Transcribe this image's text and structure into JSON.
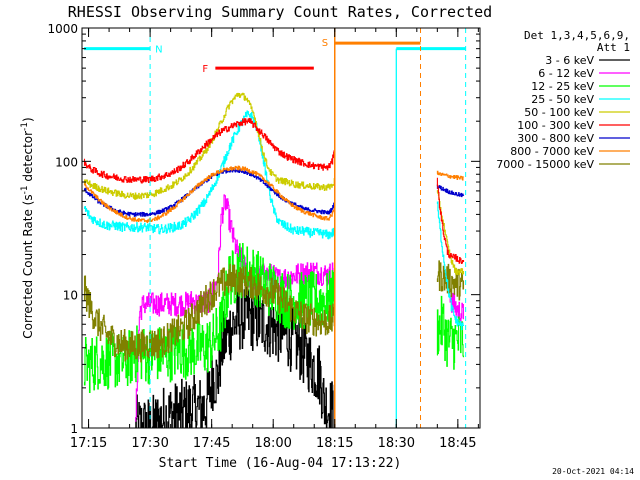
{
  "chart_data": {
    "type": "line",
    "title": "RHESSI Observing Summary Count Rates, Corrected",
    "xlabel": "Start Time (16-Aug-04 17:13:22)",
    "ylabel_main": "Corrected Count Rate (s",
    "ylabel_sup1": "-1",
    "ylabel_mid": " detector",
    "ylabel_sup2": "-1",
    "ylabel_end": ")",
    "timestamp": "20-Oct-2021 04:14",
    "x_unit": "minutes since 17:13:22 start",
    "xlim": [
      0,
      97
    ],
    "ylim": [
      1,
      1000
    ],
    "yscale": "log",
    "x_ticks": [
      {
        "label": "17:15",
        "value": 1.6
      },
      {
        "label": "17:30",
        "value": 16.6
      },
      {
        "label": "17:45",
        "value": 31.6
      },
      {
        "label": "18:00",
        "value": 46.6
      },
      {
        "label": "18:15",
        "value": 61.6
      },
      {
        "label": "18:30",
        "value": 76.6
      },
      {
        "label": "18:45",
        "value": 91.6
      }
    ],
    "y_ticks": [
      {
        "label": "1",
        "value": 1
      },
      {
        "label": "10",
        "value": 10
      },
      {
        "label": "100",
        "value": 100
      },
      {
        "label": "1000",
        "value": 1000
      }
    ],
    "legend": {
      "placement": "right",
      "header1": "Det 1,3,4,5,6,9,",
      "header2": "Att 1",
      "entries": [
        {
          "label": "3 - 6 keV",
          "color": "#000000"
        },
        {
          "label": "6 - 12 keV",
          "color": "#ff00ff"
        },
        {
          "label": "12 - 25 keV",
          "color": "#00ff00"
        },
        {
          "label": "25 - 50 keV",
          "color": "#00ffff"
        },
        {
          "label": "50 - 100 keV",
          "color": "#cccc00"
        },
        {
          "label": "100 - 300 keV",
          "color": "#ff0000"
        },
        {
          "label": "300 - 800 keV",
          "color": "#0000cc"
        },
        {
          "label": "800 - 7000 keV",
          "color": "#ff7f00"
        },
        {
          "label": "7000 - 15000 keV",
          "color": "#808000"
        }
      ]
    },
    "annotations": {
      "night": {
        "label": "N",
        "color": "#00ffff",
        "bars": [
          [
            0.5,
            16.6
          ],
          [
            76.6,
            93.5
          ]
        ],
        "bar_level": 700,
        "dashes": [
          16.6,
          93.5
        ],
        "solid": [
          76.6
        ]
      },
      "flare": {
        "label": "F",
        "color": "#ff0000",
        "bar": [
          32.5,
          56.5
        ],
        "bar_level": 500
      },
      "saa": {
        "label": "S",
        "color": "#ff7f00",
        "bar": [
          61.6,
          82.5
        ],
        "bar_level": 770,
        "solid": [
          61.6
        ],
        "dashes": [
          82.5
        ]
      }
    },
    "gaps": [
      [
        61.8,
        86.5
      ]
    ],
    "series": [
      {
        "name": "3 - 6 keV",
        "color": "#000000",
        "noise": 0.25,
        "ymin": 1,
        "x": [
          13,
          16,
          17,
          20,
          24,
          27,
          30,
          32,
          33,
          34,
          36,
          38,
          40,
          42,
          45,
          48,
          50,
          53,
          56,
          58,
          59,
          60,
          61.5
        ],
        "y": [
          1,
          1,
          1,
          1.2,
          1.3,
          1.4,
          1.4,
          2.5,
          2.3,
          4,
          5.5,
          6.5,
          7,
          6.5,
          6,
          5.3,
          5,
          4,
          3,
          2.5,
          1.5,
          1.4,
          1.3
        ]
      },
      {
        "name": "6 - 12 keV",
        "color": "#ff00ff",
        "noise": 0.09,
        "ymin": 1,
        "x": [
          13,
          14,
          15,
          20,
          25,
          27,
          28,
          31,
          33,
          34,
          35,
          36,
          37,
          38,
          39,
          40,
          41,
          42,
          44,
          46,
          48,
          50,
          52,
          54,
          56,
          58,
          60,
          61.5
        ],
        "y": [
          1,
          7.5,
          8.5,
          8.5,
          8.5,
          9,
          8.5,
          9,
          13,
          40,
          50,
          35,
          25,
          20,
          18,
          15,
          13,
          13,
          14,
          14,
          13,
          13.5,
          14,
          14.5,
          15,
          14.5,
          14,
          15
        ],
        "x2": [
          89,
          90,
          91,
          92,
          93
        ],
        "y2": [
          14,
          9,
          8,
          7.5,
          7
        ]
      },
      {
        "name": "12 - 25 keV",
        "color": "#00ff00",
        "noise": 0.22,
        "ymin": 1.8,
        "x": [
          0.5,
          2,
          4,
          6,
          8,
          10,
          12,
          14,
          16,
          18,
          20,
          22,
          24,
          26,
          28,
          30,
          32,
          34,
          36,
          37,
          38,
          40,
          42,
          44,
          46,
          48,
          50,
          52,
          54,
          56,
          58,
          60,
          61.5
        ],
        "y": [
          3,
          3,
          3.2,
          3.2,
          3.2,
          3.2,
          3.4,
          3.7,
          3.5,
          3.6,
          3.6,
          3.7,
          3.9,
          3.8,
          4,
          4,
          4.5,
          6,
          14,
          13,
          16,
          15,
          14,
          12,
          11,
          10,
          9,
          9,
          9,
          9,
          9,
          9,
          10
        ],
        "x2": [
          86.5,
          88,
          89,
          90,
          91,
          92,
          93
        ],
        "y2": [
          5.5,
          6,
          4.5,
          4.5,
          4.5,
          4.5,
          4.5
        ]
      },
      {
        "name": "25 - 50 keV",
        "color": "#00ffff",
        "noise": 0.035,
        "ymin": 1,
        "x": [
          0.5,
          2,
          4,
          6,
          8,
          10,
          12,
          14,
          16,
          18,
          20,
          22,
          24,
          26,
          28,
          30,
          32,
          34,
          36,
          38,
          40,
          41,
          42,
          43,
          44,
          45,
          46,
          47,
          48,
          50,
          52,
          54,
          56,
          58,
          60,
          61,
          61.5
        ],
        "y": [
          45,
          38,
          35,
          33,
          33,
          32,
          32,
          32,
          32,
          31,
          31,
          32,
          33,
          36,
          42,
          50,
          65,
          90,
          130,
          175,
          220,
          225,
          200,
          160,
          110,
          75,
          52,
          40,
          35,
          32,
          30,
          30,
          29,
          29,
          28,
          29,
          30
        ],
        "x2": [
          86.5,
          87,
          88,
          89,
          90,
          91,
          92,
          93
        ],
        "y2": [
          50,
          35,
          20,
          12,
          8,
          6.5,
          6,
          5.7
        ]
      },
      {
        "name": "50 - 100 keV",
        "color": "#cccc00",
        "noise": 0.025,
        "ymin": 1,
        "x": [
          0.5,
          2,
          4,
          6,
          8,
          10,
          12,
          14,
          16,
          18,
          20,
          22,
          24,
          26,
          28,
          30,
          32,
          34,
          36,
          38,
          40,
          42,
          43,
          44,
          45,
          46,
          47,
          48,
          50,
          52,
          54,
          56,
          58,
          60,
          61,
          61.5
        ],
        "y": [
          72,
          67,
          63,
          60,
          58,
          56,
          55,
          55,
          56,
          58,
          62,
          66,
          73,
          83,
          98,
          118,
          150,
          200,
          270,
          320,
          300,
          220,
          160,
          120,
          95,
          82,
          76,
          72,
          70,
          67,
          66,
          65,
          64,
          64,
          66,
          72
        ],
        "x2": [
          86.5,
          87,
          88,
          89,
          90,
          91,
          92,
          93
        ],
        "y2": [
          60,
          50,
          35,
          24,
          18,
          15,
          15,
          15
        ]
      },
      {
        "name": "100 - 300 keV",
        "color": "#ff0000",
        "noise": 0.025,
        "ymin": 1,
        "x": [
          0.5,
          2,
          4,
          6,
          8,
          10,
          12,
          14,
          16,
          18,
          20,
          22,
          24,
          26,
          28,
          30,
          32,
          34,
          36,
          38,
          40,
          41,
          42,
          44,
          46,
          48,
          50,
          52,
          54,
          56,
          58,
          60,
          61,
          61.5
        ],
        "y": [
          98,
          88,
          82,
          78,
          76,
          74,
          73,
          73,
          73,
          75,
          78,
          82,
          90,
          100,
          115,
          132,
          150,
          168,
          180,
          192,
          200,
          198,
          185,
          160,
          135,
          118,
          108,
          102,
          97,
          93,
          91,
          90,
          100,
          130
        ],
        "x2": [
          86.5,
          87,
          88,
          89,
          90,
          91,
          92,
          93
        ],
        "y2": [
          75,
          50,
          30,
          21,
          19,
          19,
          18,
          18
        ]
      },
      {
        "name": "300 - 800 keV",
        "color": "#0000cc",
        "noise": 0.015,
        "ymin": 1,
        "x": [
          0.5,
          2,
          4,
          6,
          8,
          10,
          12,
          14,
          16,
          18,
          20,
          22,
          24,
          26,
          28,
          30,
          32,
          34,
          36,
          38,
          40,
          42,
          44,
          46,
          48,
          50,
          52,
          54,
          56,
          58,
          60,
          61,
          61.5
        ],
        "y": [
          62,
          56,
          50,
          46,
          43,
          41,
          40,
          40,
          40,
          41,
          43,
          46,
          51,
          57,
          64,
          71,
          78,
          83,
          86,
          86,
          83,
          78,
          70,
          62,
          55,
          50,
          47,
          44,
          43,
          42,
          41,
          44,
          50
        ],
        "x2": [
          86.5,
          87,
          88,
          89,
          90,
          91,
          92,
          93
        ],
        "y2": [
          65,
          64,
          62,
          60,
          58,
          57,
          56,
          55
        ]
      },
      {
        "name": "800 - 7000 keV",
        "color": "#ff7f00",
        "noise": 0.015,
        "ymin": 1,
        "x": [
          0.5,
          2,
          4,
          6,
          8,
          10,
          12,
          14,
          16,
          18,
          20,
          22,
          24,
          26,
          28,
          30,
          32,
          34,
          36,
          38,
          40,
          42,
          44,
          46,
          48,
          50,
          52,
          54,
          56,
          58,
          60,
          61,
          61.5
        ],
        "y": [
          68,
          60,
          52,
          46,
          42,
          39,
          37,
          36,
          36,
          37,
          40,
          44,
          50,
          57,
          65,
          73,
          80,
          85,
          88,
          89,
          87,
          82,
          75,
          66,
          57,
          50,
          45,
          42,
          40,
          38,
          37,
          40,
          46
        ],
        "x2": [
          86.5,
          87,
          88,
          89,
          90,
          91,
          92,
          93
        ],
        "y2": [
          82,
          80,
          79,
          78,
          77,
          76,
          75,
          74
        ]
      },
      {
        "name": "7000 - 15000 keV",
        "color": "#808000",
        "noise": 0.12,
        "ymin": 2,
        "x": [
          0.5,
          1,
          2,
          4,
          6,
          8,
          10,
          12,
          14,
          16,
          18,
          20,
          22,
          24,
          26,
          28,
          30,
          32,
          34,
          36,
          38,
          40,
          42,
          44,
          46,
          48,
          50,
          52,
          54,
          56,
          58,
          60,
          61.5
        ],
        "y": [
          11,
          10,
          8,
          6,
          5,
          4.5,
          4.2,
          4.1,
          4.1,
          4.3,
          4.3,
          4.5,
          5,
          5.5,
          6.2,
          7.5,
          9,
          10.5,
          12,
          13,
          13,
          12.5,
          12,
          11,
          10.5,
          9.5,
          8.5,
          7.5,
          6.8,
          6.5,
          6.3,
          6.3,
          6.5
        ],
        "x2": [
          86.5,
          87,
          88,
          89,
          90,
          91,
          92,
          93
        ],
        "y2": [
          15,
          14,
          13.5,
          13,
          12.5,
          12,
          12,
          11.5
        ]
      }
    ]
  }
}
